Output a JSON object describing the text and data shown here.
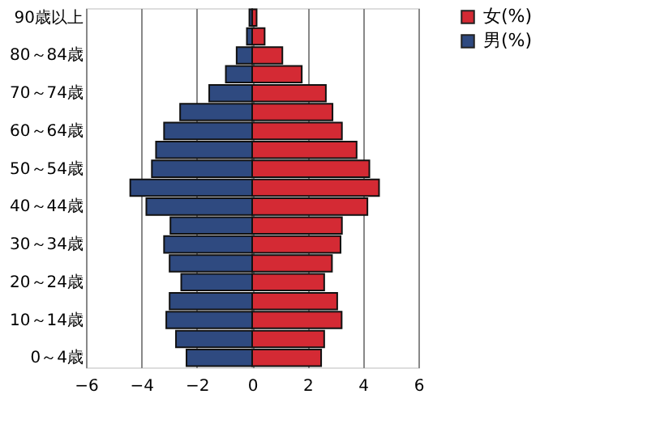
{
  "chart_data": {
    "type": "bar",
    "orientation": "horizontal",
    "stacked": true,
    "categories": [
      "90歳以上",
      null,
      "80～84歳",
      null,
      "70～74歳",
      null,
      "60～64歳",
      null,
      "50～54歳",
      null,
      "40～44歳",
      null,
      "30～34歳",
      null,
      "20～24歳",
      null,
      "10～14歳",
      null,
      "0～4歳"
    ],
    "series": [
      {
        "name": "女(%)",
        "color": "#d42a34",
        "values": [
          0.16,
          0.45,
          1.09,
          1.79,
          2.66,
          2.9,
          3.24,
          3.77,
          4.23,
          4.58,
          4.16,
          3.24,
          3.19,
          2.88,
          2.6,
          3.07,
          3.23,
          2.6,
          2.49
        ]
      },
      {
        "name": "男(%)",
        "color": "#2f4a80",
        "values": [
          -0.1,
          -0.19,
          -0.56,
          -0.95,
          -1.55,
          -2.6,
          -3.18,
          -3.47,
          -3.62,
          -4.4,
          -3.82,
          -2.95,
          -3.18,
          -2.98,
          -2.56,
          -2.98,
          -3.1,
          -2.75,
          -2.37
        ]
      }
    ],
    "xlim": [
      -6,
      6
    ],
    "xticks": [
      -6,
      -4,
      -2,
      0,
      2,
      4,
      6
    ],
    "grid": "x",
    "legend": "right"
  }
}
